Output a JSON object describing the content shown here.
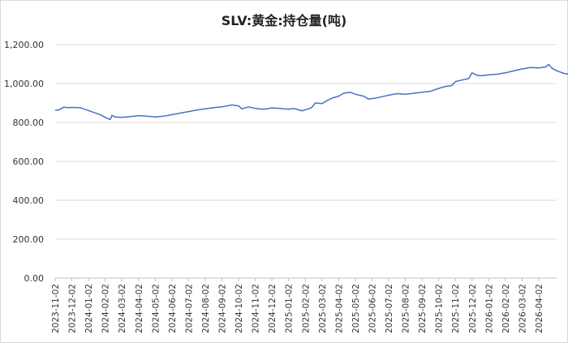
{
  "chart_data": {
    "type": "line",
    "title": "SLV:黄金:持仓量(吨)",
    "xlabel": "",
    "ylabel": "",
    "ylim": [
      0,
      1200
    ],
    "y_ticks": [
      "0.00",
      "200.00",
      "400.00",
      "600.00",
      "800.00",
      "1,000.00",
      "1,200.00"
    ],
    "x_ticks": [
      "2023-11-02",
      "2023-12-02",
      "2024-01-02",
      "2024-02-02",
      "2024-03-02",
      "2024-04-02",
      "2024-05-02",
      "2024-06-02",
      "2024-07-02",
      "2024-08-02",
      "2024-09-02",
      "2024-10-02",
      "2024-11-02",
      "2024-12-02",
      "2025-01-02",
      "2025-02-02",
      "2025-03-02",
      "2025-04-02",
      "2025-05-02",
      "2025-06-02",
      "2025-07-02",
      "2025-08-02",
      "2025-09-02",
      "2025-10-02",
      "2025-11-02",
      "2025-12-02",
      "2026-01-02",
      "2026-02-02",
      "2026-03-02",
      "2026-04-02"
    ],
    "grid": true,
    "line_color": "#4472c4",
    "series": [
      {
        "values": [
          [
            0,
            862
          ],
          [
            0.25,
            866
          ],
          [
            0.5,
            878
          ],
          [
            0.8,
            876
          ],
          [
            1.0,
            877
          ],
          [
            1.5,
            876
          ],
          [
            1.7,
            870
          ],
          [
            2.2,
            855
          ],
          [
            2.7,
            840
          ],
          [
            3.1,
            822
          ],
          [
            3.3,
            815
          ],
          [
            3.4,
            836
          ],
          [
            3.6,
            828
          ],
          [
            4.0,
            826
          ],
          [
            4.5,
            830
          ],
          [
            5.0,
            835
          ],
          [
            5.5,
            832
          ],
          [
            6.0,
            828
          ],
          [
            6.5,
            832
          ],
          [
            7.0,
            840
          ],
          [
            7.5,
            848
          ],
          [
            8.0,
            856
          ],
          [
            8.5,
            864
          ],
          [
            9.0,
            870
          ],
          [
            9.5,
            876
          ],
          [
            10.0,
            880
          ],
          [
            10.6,
            890
          ],
          [
            11.0,
            885
          ],
          [
            11.2,
            870
          ],
          [
            11.6,
            880
          ],
          [
            12.0,
            872
          ],
          [
            12.5,
            868
          ],
          [
            13.0,
            875
          ],
          [
            13.5,
            872
          ],
          [
            14.0,
            868
          ],
          [
            14.3,
            872
          ],
          [
            14.8,
            860
          ],
          [
            15.2,
            870
          ],
          [
            15.4,
            878
          ],
          [
            15.6,
            900
          ],
          [
            16.0,
            897
          ],
          [
            16.3,
            912
          ],
          [
            16.6,
            925
          ],
          [
            17.0,
            935
          ],
          [
            17.3,
            950
          ],
          [
            17.7,
            955
          ],
          [
            18.0,
            945
          ],
          [
            18.5,
            935
          ],
          [
            18.8,
            920
          ],
          [
            19.2,
            925
          ],
          [
            19.6,
            932
          ],
          [
            20.0,
            940
          ],
          [
            20.5,
            948
          ],
          [
            21.0,
            945
          ],
          [
            21.5,
            950
          ],
          [
            22.0,
            955
          ],
          [
            22.5,
            960
          ],
          [
            23.0,
            975
          ],
          [
            23.4,
            985
          ],
          [
            23.8,
            990
          ],
          [
            24.0,
            1010
          ],
          [
            24.5,
            1020
          ],
          [
            24.8,
            1025
          ],
          [
            25.0,
            1055
          ],
          [
            25.3,
            1042
          ],
          [
            25.6,
            1040
          ],
          [
            26.0,
            1045
          ],
          [
            26.5,
            1048
          ],
          [
            27.0,
            1055
          ],
          [
            27.5,
            1065
          ],
          [
            28.0,
            1075
          ],
          [
            28.5,
            1082
          ],
          [
            29.0,
            1080
          ],
          [
            29.4,
            1085
          ],
          [
            29.6,
            1098
          ],
          [
            29.8,
            1078
          ],
          [
            30.1,
            1065
          ],
          [
            30.5,
            1052
          ],
          [
            30.8,
            1048
          ],
          [
            31.1,
            1055
          ],
          [
            31.3,
            1058
          ]
        ]
      }
    ]
  }
}
